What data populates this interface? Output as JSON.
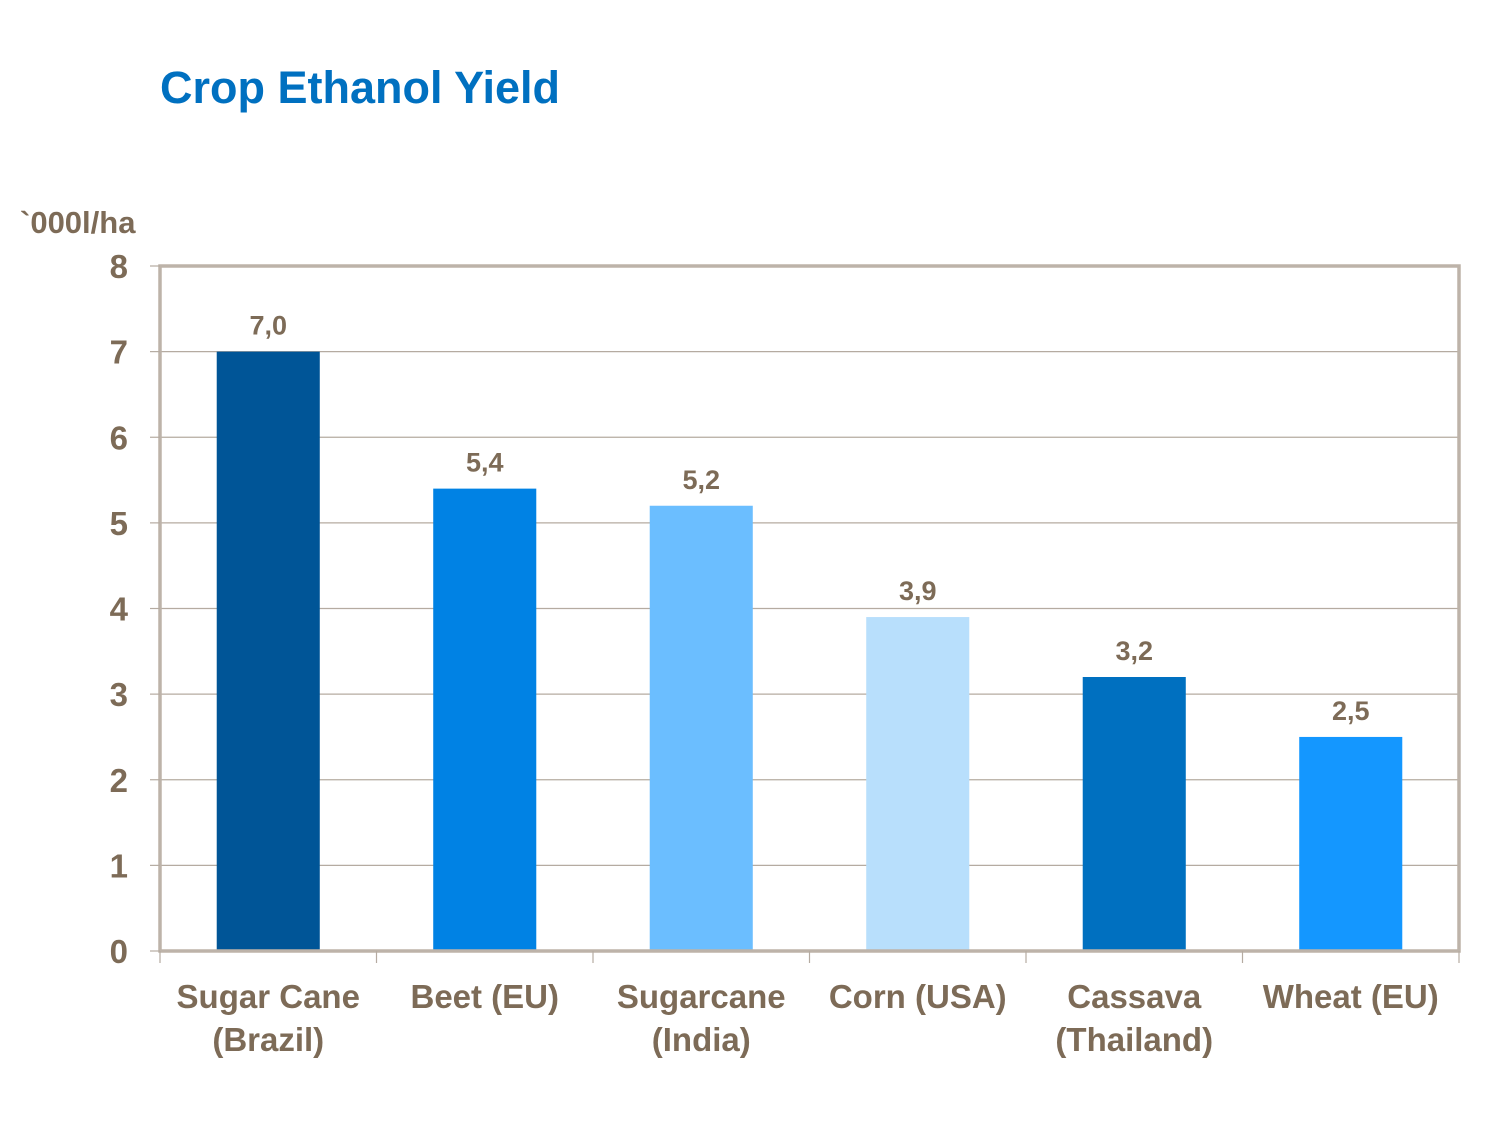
{
  "title": "Crop Ethanol Yield",
  "chart_data": {
    "type": "bar",
    "title": "Crop Ethanol Yield",
    "xlabel": "",
    "ylabel": "`000l/ha",
    "ylim": [
      0,
      8
    ],
    "yticks": [
      0,
      1,
      2,
      3,
      4,
      5,
      6,
      7,
      8
    ],
    "grid": true,
    "legend": "none",
    "categories": [
      [
        "Sugar Cane",
        "(Brazil)"
      ],
      [
        "Beet (EU)"
      ],
      [
        "Sugarcane",
        "(India)"
      ],
      [
        "Corn (USA)"
      ],
      [
        "Cassava",
        "(Thailand)"
      ],
      [
        "Wheat (EU)"
      ]
    ],
    "values": [
      7.0,
      5.4,
      5.2,
      3.9,
      3.2,
      2.5
    ],
    "data_labels": [
      "7,0",
      "5,4",
      "5,2",
      "3,9",
      "3,2",
      "2,5"
    ],
    "bar_colors": [
      "#005597",
      "#0082E4",
      "#6BBEFF",
      "#B8DFFC",
      "#0070C0",
      "#1497FF"
    ]
  },
  "colors": {
    "title": "#0070C0",
    "text": "#7D6B57",
    "axis": "#BDB3A9",
    "grid": "#B5ABA1"
  }
}
